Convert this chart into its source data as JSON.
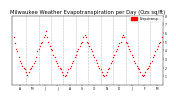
{
  "title": "Milwaukee Weather Evapotranspiration per Day (Ozs sq/ft)",
  "title_fontsize": 3.8,
  "dot_color": "#ff0000",
  "line_color": "#cc0000",
  "background_color": "#ffffff",
  "grid_color": "#bbbbbb",
  "ylim": [
    0,
    8
  ],
  "yticks": [
    1,
    2,
    3,
    4,
    5,
    6,
    7,
    8
  ],
  "ytick_labels": [
    "1",
    "2",
    "3",
    "4",
    "5",
    "6",
    "7",
    "8"
  ],
  "legend_label": "Evapotransp...",
  "x_values": [
    0,
    1,
    2,
    3,
    4,
    5,
    6,
    7,
    8,
    9,
    10,
    11,
    12,
    13,
    14,
    15,
    16,
    17,
    18,
    19,
    20,
    21,
    22,
    23,
    24,
    25,
    26,
    27,
    28,
    29,
    30,
    31,
    32,
    33,
    34,
    35,
    36,
    37,
    38,
    39,
    40,
    41,
    42,
    43,
    44,
    45,
    46,
    47,
    48,
    49,
    50,
    51,
    52,
    53,
    54,
    55,
    56,
    57,
    58,
    59,
    60,
    61,
    62,
    63,
    64,
    65,
    66,
    67,
    68,
    69,
    70,
    71,
    72,
    73,
    74,
    75,
    76,
    77,
    78,
    79,
    80,
    81,
    82,
    83,
    84,
    85,
    86,
    87,
    88,
    89,
    90,
    91,
    92,
    93,
    94,
    95,
    96,
    97,
    98,
    99,
    100,
    101,
    102,
    103,
    104,
    105,
    106,
    107,
    108,
    109,
    110,
    111,
    112,
    113,
    114,
    115,
    116,
    117,
    118,
    119
  ],
  "y_values": [
    5.5,
    4.8,
    4.2,
    3.9,
    3.2,
    2.8,
    2.5,
    2.2,
    2.0,
    1.8,
    1.5,
    1.2,
    1.5,
    1.8,
    2.0,
    2.2,
    2.5,
    2.8,
    3.2,
    3.9,
    4.2,
    4.5,
    4.8,
    5.0,
    5.5,
    5.8,
    6.2,
    5.5,
    5.0,
    4.5,
    4.2,
    4.0,
    3.5,
    3.2,
    2.8,
    2.5,
    2.2,
    2.0,
    1.8,
    1.5,
    1.2,
    1.0,
    1.2,
    1.5,
    1.8,
    2.0,
    2.2,
    2.5,
    2.8,
    3.2,
    3.5,
    3.9,
    4.2,
    4.5,
    4.8,
    5.0,
    5.5,
    5.8,
    5.5,
    5.0,
    4.8,
    4.5,
    4.2,
    3.9,
    3.5,
    3.2,
    2.9,
    2.5,
    2.2,
    2.0,
    1.8,
    1.5,
    1.2,
    1.0,
    1.2,
    1.5,
    1.8,
    2.0,
    2.5,
    2.8,
    3.2,
    3.5,
    3.9,
    4.2,
    4.5,
    4.8,
    5.0,
    5.5,
    5.8,
    5.5,
    5.0,
    4.8,
    4.5,
    4.2,
    3.9,
    3.5,
    3.2,
    2.8,
    2.5,
    2.2,
    2.0,
    1.8,
    1.5,
    1.2,
    1.0,
    1.2,
    1.5,
    1.8,
    2.0,
    2.2,
    2.5,
    2.8,
    3.2,
    3.5,
    3.9,
    4.2,
    4.5,
    4.8,
    5.0,
    5.5
  ],
  "vertical_lines": [
    10,
    20,
    30,
    40,
    50,
    60,
    70,
    80,
    90,
    100,
    110
  ],
  "month_positions": [
    5,
    15,
    25,
    35,
    45,
    55,
    65,
    75,
    85,
    95,
    105,
    115
  ],
  "month_labels": [
    "A",
    "M",
    "J",
    "J",
    "A",
    "S",
    "O",
    "N",
    "D",
    "J",
    "F",
    "M"
  ]
}
